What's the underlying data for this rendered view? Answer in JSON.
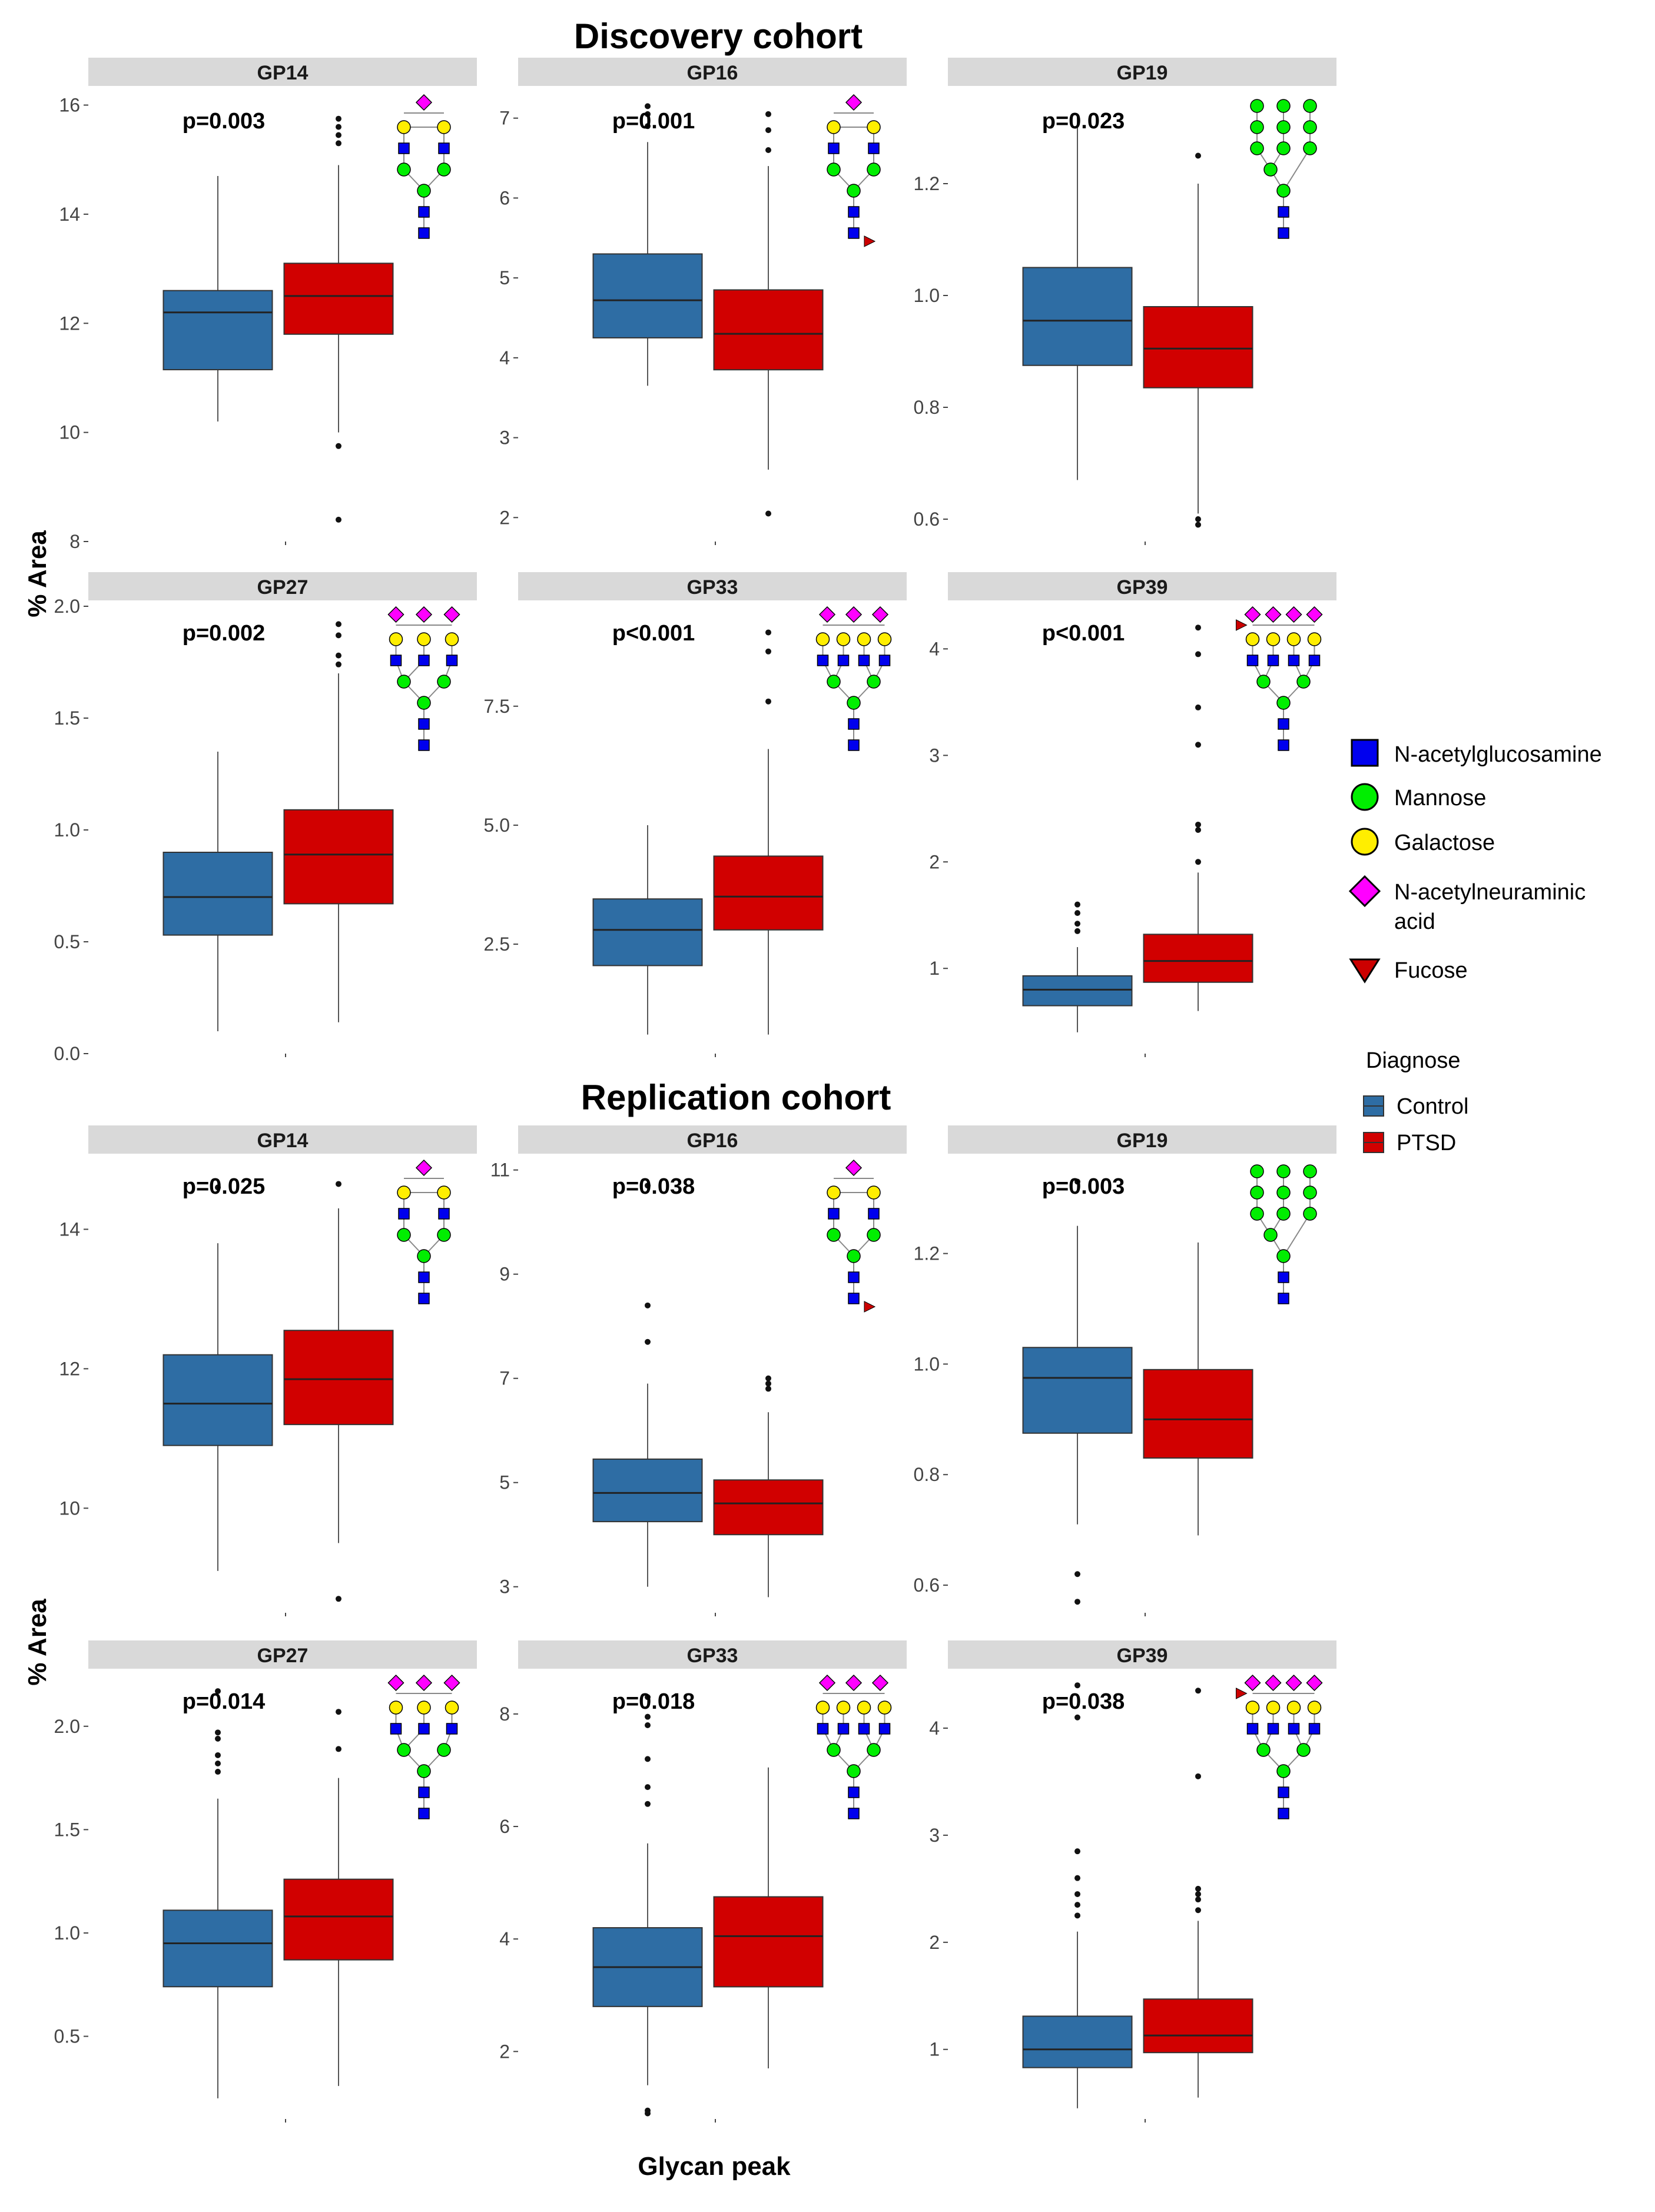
{
  "y_axis_label": "% Area",
  "x_axis_label": "Glycan peak",
  "colors": {
    "control": "#2e6da4",
    "ptsd": "#d10000",
    "strip": "#d9d9d9",
    "glcnac": "#0000ee",
    "mannose": "#00ee00",
    "galactose": "#ffee00",
    "neuac": "#ff00ff",
    "fucose": "#cc0000"
  },
  "legend_monosaccharides": [
    {
      "label": "N-acetylglucosamine",
      "shape": "square",
      "color": "#0000ee"
    },
    {
      "label": "Mannose",
      "shape": "circle",
      "color": "#00ee00"
    },
    {
      "label": "Galactose",
      "shape": "circle",
      "color": "#ffee00"
    },
    {
      "label": "N-acetylneuraminic",
      "label2": "acid",
      "shape": "diamond",
      "color": "#ff00ff"
    },
    {
      "label": "Fucose",
      "shape": "triangle",
      "color": "#cc0000"
    }
  ],
  "legend_diagnose": {
    "title": "Diagnose",
    "items": [
      {
        "label": "Control",
        "color": "#2e6da4"
      },
      {
        "label": "PTSD",
        "color": "#d10000"
      }
    ]
  },
  "chart_data": [
    {
      "cohort": "Discovery cohort",
      "type": "boxplot",
      "groups": [
        "Control",
        "PTSD"
      ],
      "panels": [
        {
          "title": "GP14",
          "p": "p=0.003",
          "glycan": "A2G2S1",
          "ylim": [
            8,
            16.2
          ],
          "ticks": [
            8,
            10,
            12,
            14,
            16
          ],
          "tick_labels": [
            "8",
            "10",
            "12",
            "14",
            "16"
          ],
          "boxes": [
            {
              "group": "Control",
              "min": 10.2,
              "q1": 11.15,
              "median": 12.2,
              "q3": 12.6,
              "max": 14.7,
              "outliers": []
            },
            {
              "group": "PTSD",
              "min": 10.0,
              "q1": 11.8,
              "median": 12.5,
              "q3": 13.1,
              "max": 14.9,
              "outliers": [
                9.75,
                8.4,
                15.3,
                15.45,
                15.6,
                15.75
              ]
            }
          ]
        },
        {
          "title": "GP16",
          "p": "p=0.001",
          "glycan": "FA2G2S1",
          "ylim": [
            1.7,
            7.3
          ],
          "ticks": [
            2,
            3,
            4,
            5,
            6,
            7
          ],
          "tick_labels": [
            "2",
            "3",
            "4",
            "5",
            "6",
            "7"
          ],
          "boxes": [
            {
              "group": "Control",
              "min": 3.65,
              "q1": 4.25,
              "median": 4.72,
              "q3": 5.3,
              "max": 6.7,
              "outliers": [
                6.9,
                7.05,
                7.15
              ]
            },
            {
              "group": "PTSD",
              "min": 2.6,
              "q1": 3.85,
              "median": 4.3,
              "q3": 4.85,
              "max": 6.4,
              "outliers": [
                6.6,
                6.85,
                7.05,
                2.05
              ]
            }
          ]
        },
        {
          "title": "GP19",
          "p": "p=0.023",
          "glycan": "M9",
          "ylim": [
            0.56,
            1.36
          ],
          "ticks": [
            0.6,
            0.8,
            1.0,
            1.2
          ],
          "tick_labels": [
            "0.6",
            "0.8",
            "1.0",
            "1.2"
          ],
          "boxes": [
            {
              "group": "Control",
              "min": 0.67,
              "q1": 0.875,
              "median": 0.955,
              "q3": 1.05,
              "max": 1.32,
              "outliers": []
            },
            {
              "group": "PTSD",
              "min": 0.61,
              "q1": 0.835,
              "median": 0.905,
              "q3": 0.98,
              "max": 1.2,
              "outliers": [
                0.6,
                0.59,
                1.25
              ]
            }
          ]
        },
        {
          "title": "GP27",
          "p": "p=0.002",
          "glycan": "A3G3S3",
          "ylim": [
            0,
            2.0
          ],
          "ticks": [
            0.0,
            0.5,
            1.0,
            1.5,
            2.0
          ],
          "tick_labels": [
            "0.0",
            "0.5",
            "1.0",
            "1.5",
            "2.0"
          ],
          "boxes": [
            {
              "group": "Control",
              "min": 0.1,
              "q1": 0.53,
              "median": 0.7,
              "q3": 0.9,
              "max": 1.35,
              "outliers": []
            },
            {
              "group": "PTSD",
              "min": 0.14,
              "q1": 0.67,
              "median": 0.89,
              "q3": 1.09,
              "max": 1.7,
              "outliers": [
                1.74,
                1.78,
                1.87,
                1.92
              ]
            }
          ]
        },
        {
          "title": "GP33",
          "p": "p<0.001",
          "glycan": "A4G4S3",
          "ylim": [
            0.2,
            9.6
          ],
          "ticks": [
            2.5,
            5.0,
            7.5
          ],
          "tick_labels": [
            "2.5",
            "5.0",
            "7.5"
          ],
          "boxes": [
            {
              "group": "Control",
              "min": 0.6,
              "q1": 2.05,
              "median": 2.8,
              "q3": 3.45,
              "max": 5.0,
              "outliers": []
            },
            {
              "group": "PTSD",
              "min": 0.6,
              "q1": 2.8,
              "median": 3.5,
              "q3": 4.35,
              "max": 6.6,
              "outliers": [
                7.6,
                8.65,
                9.05
              ]
            }
          ]
        },
        {
          "title": "GP39",
          "p": "p<0.001",
          "glycan": "A4G4S4",
          "ylim": [
            0.2,
            4.4
          ],
          "ticks": [
            1,
            2,
            3,
            4
          ],
          "tick_labels": [
            "1",
            "2",
            "3",
            "4"
          ],
          "boxes": [
            {
              "group": "Control",
              "min": 0.4,
              "q1": 0.65,
              "median": 0.8,
              "q3": 0.93,
              "max": 1.2,
              "outliers": [
                1.35,
                1.42,
                1.52,
                1.6
              ]
            },
            {
              "group": "PTSD",
              "min": 0.6,
              "q1": 0.87,
              "median": 1.07,
              "q3": 1.32,
              "max": 1.9,
              "outliers": [
                2.0,
                2.3,
                2.35,
                3.1,
                3.45,
                3.95,
                4.2
              ]
            }
          ]
        }
      ]
    },
    {
      "cohort": "Replication cohort",
      "type": "boxplot",
      "groups": [
        "Control",
        "PTSD"
      ],
      "panels": [
        {
          "title": "GP14",
          "p": "p=0.025",
          "glycan": "A2G2S1",
          "ylim": [
            8.5,
            15.0
          ],
          "ticks": [
            10,
            12,
            14
          ],
          "tick_labels": [
            "10",
            "12",
            "14"
          ],
          "boxes": [
            {
              "group": "Control",
              "min": 9.1,
              "q1": 10.9,
              "median": 11.5,
              "q3": 12.2,
              "max": 13.8,
              "outliers": [
                14.6
              ]
            },
            {
              "group": "PTSD",
              "min": 9.5,
              "q1": 11.2,
              "median": 11.85,
              "q3": 12.55,
              "max": 14.3,
              "outliers": [
                14.65,
                8.7
              ]
            }
          ]
        },
        {
          "title": "GP16",
          "p": "p=0.038",
          "glycan": "FA2G2S1",
          "ylim": [
            2.5,
            11.2
          ],
          "ticks": [
            3,
            5,
            7,
            9,
            11
          ],
          "tick_labels": [
            "3",
            "5",
            "7",
            "9",
            "11"
          ],
          "boxes": [
            {
              "group": "Control",
              "min": 3.0,
              "q1": 4.25,
              "median": 4.8,
              "q3": 5.45,
              "max": 6.9,
              "outliers": [
                7.7,
                8.4,
                10.7
              ]
            },
            {
              "group": "PTSD",
              "min": 2.8,
              "q1": 4.0,
              "median": 4.6,
              "q3": 5.05,
              "max": 6.35,
              "outliers": [
                6.8,
                6.9,
                7.0
              ]
            }
          ]
        },
        {
          "title": "GP19",
          "p": "p=0.003",
          "glycan": "M9",
          "ylim": [
            0.55,
            1.37
          ],
          "ticks": [
            0.6,
            0.8,
            1.0,
            1.2
          ],
          "tick_labels": [
            "0.6",
            "0.8",
            "1.0",
            "1.2"
          ],
          "boxes": [
            {
              "group": "Control",
              "min": 0.71,
              "q1": 0.875,
              "median": 0.975,
              "q3": 1.03,
              "max": 1.25,
              "outliers": [
                0.62,
                0.57,
                1.33
              ]
            },
            {
              "group": "PTSD",
              "min": 0.69,
              "q1": 0.83,
              "median": 0.9,
              "q3": 0.99,
              "max": 1.22,
              "outliers": []
            }
          ]
        },
        {
          "title": "GP27",
          "p": "p=0.014",
          "glycan": "A3G3S3",
          "ylim": [
            0.1,
            2.25
          ],
          "ticks": [
            0.5,
            1.0,
            1.5,
            2.0
          ],
          "tick_labels": [
            "0.5",
            "1.0",
            "1.5",
            "2.0"
          ],
          "boxes": [
            {
              "group": "Control",
              "min": 0.2,
              "q1": 0.74,
              "median": 0.95,
              "q3": 1.11,
              "max": 1.65,
              "outliers": [
                1.78,
                1.82,
                1.86,
                1.94,
                1.97,
                2.17
              ]
            },
            {
              "group": "PTSD",
              "min": 0.26,
              "q1": 0.87,
              "median": 1.08,
              "q3": 1.26,
              "max": 1.75,
              "outliers": [
                1.89,
                2.07
              ]
            }
          ]
        },
        {
          "title": "GP33",
          "p": "p=0.018",
          "glycan": "A4G4S3",
          "ylim": [
            0.8,
            8.7
          ],
          "ticks": [
            2,
            4,
            6,
            8
          ],
          "tick_labels": [
            "2",
            "4",
            "6",
            "8"
          ],
          "boxes": [
            {
              "group": "Control",
              "min": 1.4,
              "q1": 2.8,
              "median": 3.5,
              "q3": 4.2,
              "max": 5.7,
              "outliers": [
                6.4,
                6.7,
                7.2,
                7.8,
                7.95,
                8.3,
                0.95,
                0.9
              ]
            },
            {
              "group": "PTSD",
              "min": 1.7,
              "q1": 3.15,
              "median": 4.05,
              "q3": 4.75,
              "max": 7.05,
              "outliers": []
            }
          ]
        },
        {
          "title": "GP39",
          "p": "p=0.038",
          "glycan": "A4G4S4",
          "ylim": [
            0.35,
            4.5
          ],
          "ticks": [
            1,
            2,
            3,
            4
          ],
          "tick_labels": [
            "1",
            "2",
            "3",
            "4"
          ],
          "boxes": [
            {
              "group": "Control",
              "min": 0.45,
              "q1": 0.83,
              "median": 1.0,
              "q3": 1.31,
              "max": 2.1,
              "outliers": [
                2.25,
                2.35,
                2.45,
                2.6,
                2.85,
                4.1,
                4.4
              ]
            },
            {
              "group": "PTSD",
              "min": 0.55,
              "q1": 0.97,
              "median": 1.13,
              "q3": 1.47,
              "max": 2.2,
              "outliers": [
                2.3,
                2.4,
                2.45,
                2.5,
                3.55,
                4.35
              ]
            }
          ]
        }
      ]
    }
  ]
}
